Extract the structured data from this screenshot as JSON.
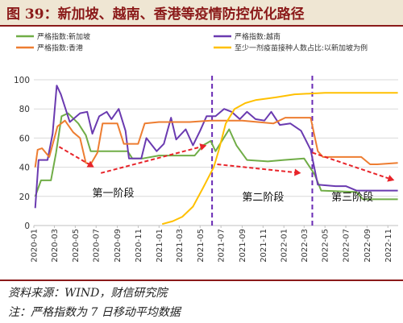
{
  "header": {
    "title": "图 39：新加坡、越南、香港等疫情防控优化路径"
  },
  "footer": {
    "source": "资料来源：WIND，财信研究院",
    "note": "注：严格指数为 7 日移动平均数据"
  },
  "chart_data": {
    "type": "line",
    "title": "",
    "xlabel": "",
    "ylabel": "",
    "ylim": [
      0,
      100
    ],
    "yticks": [
      0,
      20,
      40,
      60,
      80,
      100
    ],
    "x_axis": {
      "type": "date",
      "start": "2020-01",
      "end": "2022-12",
      "tick_labels": [
        "2020-01",
        "2020-03",
        "2020-05",
        "2020-07",
        "2020-09",
        "2020-11",
        "2021-01",
        "2021-03",
        "2021-05",
        "2021-07",
        "2021-09",
        "2021-11",
        "2022-01",
        "2022-03",
        "2022-05",
        "2022-07",
        "2022-09",
        "2022-11"
      ]
    },
    "grid": "horizontal",
    "legend": "top",
    "series": [
      {
        "name": "严格指数:新加坡",
        "color": "#70ad47",
        "points": [
          [
            "2020-01-05",
            20
          ],
          [
            "2020-01-22",
            31
          ],
          [
            "2020-02-20",
            31
          ],
          [
            "2020-03-06",
            50
          ],
          [
            "2020-03-22",
            75
          ],
          [
            "2020-04-10",
            77
          ],
          [
            "2020-05-10",
            70
          ],
          [
            "2020-06-01",
            62
          ],
          [
            "2020-06-15",
            51
          ],
          [
            "2020-08-01",
            51
          ],
          [
            "2020-10-01",
            51
          ],
          [
            "2020-10-15",
            46
          ],
          [
            "2020-11-15",
            46
          ],
          [
            "2021-01-01",
            48
          ],
          [
            "2021-04-15",
            48
          ],
          [
            "2021-05-10",
            55
          ],
          [
            "2021-06-01",
            58
          ],
          [
            "2021-06-15",
            51
          ],
          [
            "2021-07-25",
            66
          ],
          [
            "2021-08-15",
            55
          ],
          [
            "2021-09-15",
            45
          ],
          [
            "2021-11-15",
            44
          ],
          [
            "2022-01-01",
            45
          ],
          [
            "2022-03-01",
            46
          ],
          [
            "2022-04-01",
            35
          ],
          [
            "2022-04-20",
            24
          ],
          [
            "2022-08-01",
            23
          ],
          [
            "2022-08-20",
            18
          ],
          [
            "2022-11-30",
            18
          ]
        ]
      },
      {
        "name": "严格指数:越南",
        "color": "#6a3ab0",
        "points": [
          [
            "2020-01-05",
            12
          ],
          [
            "2020-01-15",
            45
          ],
          [
            "2020-02-10",
            45
          ],
          [
            "2020-02-25",
            63
          ],
          [
            "2020-03-08",
            96
          ],
          [
            "2020-03-20",
            90
          ],
          [
            "2020-04-15",
            71
          ],
          [
            "2020-05-15",
            77
          ],
          [
            "2020-06-05",
            78
          ],
          [
            "2020-06-20",
            63
          ],
          [
            "2020-07-10",
            75
          ],
          [
            "2020-08-01",
            78
          ],
          [
            "2020-08-15",
            73
          ],
          [
            "2020-09-05",
            80
          ],
          [
            "2020-09-25",
            65
          ],
          [
            "2020-10-05",
            46
          ],
          [
            "2020-11-10",
            46
          ],
          [
            "2020-11-25",
            60
          ],
          [
            "2020-12-25",
            51
          ],
          [
            "2021-01-15",
            56
          ],
          [
            "2021-02-05",
            74
          ],
          [
            "2021-02-20",
            59
          ],
          [
            "2021-03-20",
            66
          ],
          [
            "2021-04-10",
            55
          ],
          [
            "2021-05-01",
            65
          ],
          [
            "2021-05-20",
            75
          ],
          [
            "2021-06-15",
            75
          ],
          [
            "2021-07-10",
            80
          ],
          [
            "2021-08-01",
            78
          ],
          [
            "2021-08-25",
            73
          ],
          [
            "2021-09-15",
            78
          ],
          [
            "2021-10-10",
            73
          ],
          [
            "2021-11-05",
            72
          ],
          [
            "2021-11-25",
            78
          ],
          [
            "2021-12-20",
            69
          ],
          [
            "2022-01-20",
            70
          ],
          [
            "2022-02-20",
            65
          ],
          [
            "2022-03-20",
            52
          ],
          [
            "2022-04-10",
            28
          ],
          [
            "2022-06-01",
            27
          ],
          [
            "2022-07-01",
            27
          ],
          [
            "2022-08-01",
            24
          ],
          [
            "2022-11-30",
            24
          ]
        ]
      },
      {
        "name": "严格指数:香港",
        "color": "#ed7d31",
        "points": [
          [
            "2020-01-05",
            40
          ],
          [
            "2020-01-12",
            52
          ],
          [
            "2020-01-25",
            53
          ],
          [
            "2020-02-15",
            47
          ],
          [
            "2020-03-01",
            60
          ],
          [
            "2020-03-10",
            68
          ],
          [
            "2020-04-01",
            72
          ],
          [
            "2020-04-25",
            64
          ],
          [
            "2020-05-15",
            60
          ],
          [
            "2020-06-01",
            43
          ],
          [
            "2020-06-15",
            42
          ],
          [
            "2020-07-05",
            50
          ],
          [
            "2020-07-20",
            70
          ],
          [
            "2020-09-01",
            70
          ],
          [
            "2020-09-20",
            56
          ],
          [
            "2020-11-01",
            56
          ],
          [
            "2020-11-20",
            70
          ],
          [
            "2021-01-01",
            71
          ],
          [
            "2021-04-01",
            71
          ],
          [
            "2021-06-01",
            72
          ],
          [
            "2021-09-01",
            72
          ],
          [
            "2021-12-01",
            70
          ],
          [
            "2022-01-05",
            74
          ],
          [
            "2022-03-20",
            74
          ],
          [
            "2022-04-10",
            51
          ],
          [
            "2022-04-25",
            47
          ],
          [
            "2022-08-15",
            47
          ],
          [
            "2022-09-10",
            42
          ],
          [
            "2022-10-01",
            42
          ],
          [
            "2022-11-30",
            43
          ]
        ]
      },
      {
        "name": "至少一剂疫苗接种人数占比:以新加坡为例",
        "color": "#ffc000",
        "points": [
          [
            "2021-01-10",
            1
          ],
          [
            "2021-02-10",
            3
          ],
          [
            "2021-03-10",
            6
          ],
          [
            "2021-04-10",
            13
          ],
          [
            "2021-05-10",
            26
          ],
          [
            "2021-06-10",
            40
          ],
          [
            "2021-06-25",
            52
          ],
          [
            "2021-07-15",
            70
          ],
          [
            "2021-08-10",
            80
          ],
          [
            "2021-09-10",
            84
          ],
          [
            "2021-10-10",
            86
          ],
          [
            "2021-11-10",
            87
          ],
          [
            "2021-12-10",
            88
          ],
          [
            "2022-02-01",
            90
          ],
          [
            "2022-05-01",
            91
          ],
          [
            "2022-11-30",
            91
          ]
        ]
      }
    ],
    "phase_dividers": [
      "2021-06-05",
      "2022-03-25"
    ],
    "phases": [
      {
        "label": "第一阶段",
        "at": "2020-08-20",
        "y": 20
      },
      {
        "label": "第二阶段",
        "at": "2021-11-01",
        "y": 17
      },
      {
        "label": "第三阶段",
        "at": "2022-07-20",
        "y": 17
      }
    ],
    "trend_arrows": [
      {
        "from": [
          "2020-03-15",
          54
        ],
        "to": [
          "2020-06-25",
          40
        ],
        "color": "#e8242a"
      },
      {
        "from": [
          "2020-07-15",
          36
        ],
        "to": [
          "2021-05-20",
          55
        ],
        "color": "#e8242a"
      },
      {
        "from": [
          "2021-06-20",
          42
        ],
        "to": [
          "2022-02-20",
          36
        ],
        "color": "#e8242a"
      },
      {
        "from": [
          "2022-03-25",
          50
        ],
        "to": [
          "2022-11-20",
          31
        ],
        "color": "#e8242a"
      }
    ]
  }
}
